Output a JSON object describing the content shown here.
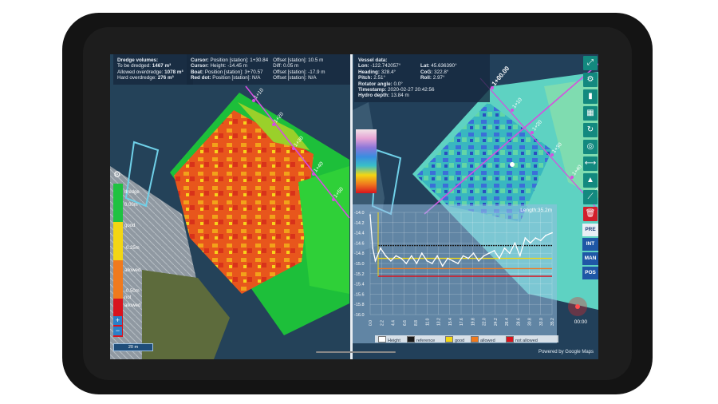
{
  "dredge": {
    "title": "Dredge volumes:",
    "rows": [
      {
        "label": "To be dredged:",
        "value": "1467 m³"
      },
      {
        "label": "Allowed overdredge:",
        "value": "1078 m³"
      },
      {
        "label": "Hard overdredge:",
        "value": "276 m³"
      }
    ]
  },
  "cursor_info": {
    "col1": [
      {
        "label": "Cursor:",
        "value": "Position [station]: 1+30.84"
      },
      {
        "label": "Cursor:",
        "value": "Height: -14.45 m"
      },
      {
        "label": "Boat:",
        "value": "Position [station]: 3+70.57"
      },
      {
        "label": "Red dot:",
        "value": "Position [station]: N/A"
      }
    ],
    "col2": [
      {
        "label": "Offset [station]:",
        "value": "10.5 m"
      },
      {
        "label": "Diff:",
        "value": "0.05 m"
      },
      {
        "label": "Offset [station]:",
        "value": "-17.9 m"
      },
      {
        "label": "Offset [station]:",
        "value": "N/A"
      }
    ]
  },
  "vessel": {
    "title": "Vessel data:",
    "lon_label": "Lon:",
    "lon": "-122.742057°",
    "lat_label": "Lat:",
    "lat": "45.636390°",
    "heading_label": "Heading:",
    "heading": "328.4°",
    "cog_label": "CoG:",
    "cog": "322.8°",
    "pitch_label": "Pitch:",
    "pitch": "2.51°",
    "roll_label": "Roll:",
    "roll": "2.97°",
    "rotator_label": "Rotator angle:",
    "rotator": "0.0°",
    "timestamp_label": "Timestamp:",
    "timestamp": "2020-02-27 20:42:56",
    "hydro_label": "Hydro depth:",
    "hydro": "13.84 m"
  },
  "legend_left": {
    "labels": [
      "dredge",
      "0.00m",
      "good",
      "-0.25m",
      "allowed",
      "-0.50m",
      "not",
      "allowed"
    ],
    "colors": [
      "#1fc241",
      "#f2d614",
      "#f07a1e",
      "#d8141e"
    ]
  },
  "zoom": {
    "plus": "+",
    "minus": "−"
  },
  "scale_bar": "20 m",
  "stations_left": [
    "1+10",
    "1+20",
    "1+30",
    "1+40",
    "1+50"
  ],
  "stations_right": [
    "1+00.00",
    "1+10",
    "1+20",
    "1+30",
    "1+40",
    "1+50"
  ],
  "toolbar": {
    "icons": [
      "expand-icon",
      "gear-icon",
      "book-icon",
      "grid-icon",
      "refresh-icon",
      "target-icon",
      "ruler-icon",
      "chart-icon",
      "route-icon",
      "trash-icon"
    ],
    "glyphs": [
      "⤢",
      "⚙",
      "▮",
      "▦",
      "↻",
      "◎",
      "⟷",
      "▲",
      "⟋",
      "🗑"
    ],
    "modes": [
      "PRE",
      "INT",
      "MAN",
      "POS"
    ],
    "active_mode": "PRE"
  },
  "profile": {
    "title": "Length:35.2m",
    "legend": [
      {
        "name": "Height",
        "color": "#ffffff"
      },
      {
        "name": "reference",
        "color": "#1a1a1a"
      },
      {
        "name": "good",
        "color": "#f2d614"
      },
      {
        "name": "allowed",
        "color": "#f07a1e"
      },
      {
        "name": "not allowed",
        "color": "#d8141e"
      }
    ],
    "y_ticks": [
      "-14.0",
      "-14.2",
      "-14.4",
      "-14.6",
      "-14.8",
      "-15.0",
      "-15.2",
      "-15.4",
      "-15.6",
      "-15.8",
      "-16.0"
    ],
    "x_ticks": [
      "0.0",
      "2.2",
      "4.4",
      "6.6",
      "8.8",
      "11.0",
      "13.2",
      "15.4",
      "17.6",
      "19.8",
      "22.0",
      "24.2",
      "26.4",
      "28.6",
      "30.8",
      "33.0",
      "35.2"
    ],
    "chart_data": {
      "type": "line",
      "ylim": [
        -16.0,
        -14.0
      ],
      "xlim": [
        0,
        35.2
      ],
      "reference": -14.65,
      "good": -14.9,
      "allowed": -15.1,
      "height_x": [
        0,
        0.5,
        1,
        2,
        3,
        4,
        5,
        6,
        7,
        8,
        9,
        10,
        11,
        12,
        13,
        14,
        15,
        16,
        17,
        18,
        19,
        20,
        21,
        22,
        23,
        24,
        25,
        26,
        27,
        28,
        29,
        30,
        31,
        32,
        33,
        34,
        35.2
      ],
      "height_y": [
        -14.05,
        -14.7,
        -14.95,
        -14.7,
        -14.85,
        -14.95,
        -14.85,
        -14.9,
        -15.0,
        -14.85,
        -15.0,
        -14.8,
        -14.95,
        -15.0,
        -14.85,
        -15.05,
        -14.9,
        -14.95,
        -15.0,
        -14.85,
        -14.9,
        -14.8,
        -14.95,
        -14.85,
        -14.8,
        -14.75,
        -14.9,
        -14.7,
        -14.8,
        -14.6,
        -14.85,
        -14.5,
        -14.6,
        -14.5,
        -14.55,
        -14.45,
        -14.4
      ]
    }
  },
  "google": "Powered by Google Maps",
  "timer": "00:00"
}
